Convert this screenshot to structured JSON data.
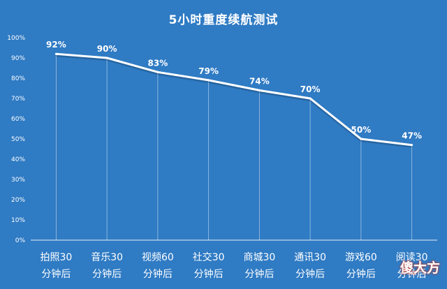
{
  "chart_data": {
    "type": "line",
    "title": "5小时重度续航测试",
    "categories": [
      "拍照30\n分钟后",
      "音乐30\n分钟后",
      "视频60\n分钟后",
      "社交30\n分钟后",
      "商城30\n分钟后",
      "通讯30\n分钟后",
      "游戏60\n分钟后",
      "阅读30\n分钟后"
    ],
    "values": [
      92,
      90,
      83,
      79,
      74,
      70,
      50,
      47
    ],
    "data_labels": [
      "92%",
      "90%",
      "83%",
      "79%",
      "74%",
      "70%",
      "50%",
      "47%"
    ],
    "ylim": [
      0,
      100
    ],
    "yticks": [
      "0%",
      "10%",
      "20%",
      "30%",
      "40%",
      "50%",
      "60%",
      "70%",
      "80%",
      "90%",
      "100%"
    ],
    "xlabel": "",
    "ylabel": "",
    "grid": "vertical drop lines",
    "colors": {
      "background": "#2f7bc4",
      "line": "#ffffff",
      "text": "#ffffff"
    }
  },
  "watermark": "傻大方"
}
